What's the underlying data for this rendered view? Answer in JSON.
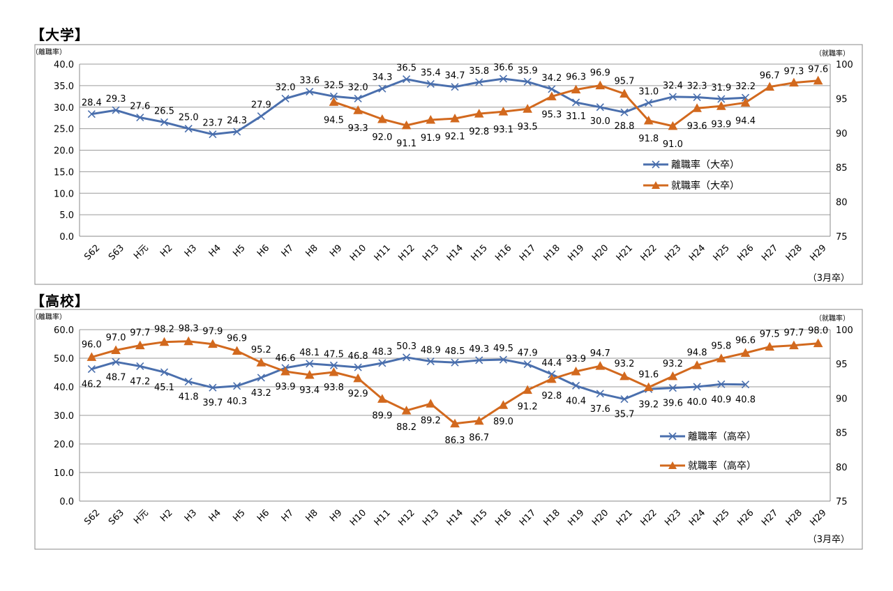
{
  "chart_data": [
    {
      "type": "line",
      "section_title": "【大学】",
      "left_axis_label": "（離職率）",
      "right_axis_label": "（就職率）",
      "x_note": "（3月卒）",
      "categories": [
        "S62",
        "S63",
        "H元",
        "H2",
        "H3",
        "H4",
        "H5",
        "H6",
        "H7",
        "H8",
        "H9",
        "H10",
        "H11",
        "H12",
        "H13",
        "H14",
        "H15",
        "H16",
        "H17",
        "H18",
        "H19",
        "H20",
        "H21",
        "H22",
        "H23",
        "H24",
        "H25",
        "H26",
        "H27",
        "H28",
        "H29"
      ],
      "ylim": [
        0,
        40
      ],
      "y_ticks": [
        "0.0",
        "5.0",
        "10.0",
        "15.0",
        "20.0",
        "25.0",
        "30.0",
        "35.0",
        "40.0"
      ],
      "y2lim": [
        75,
        100
      ],
      "y2_ticks": [
        "75",
        "80",
        "85",
        "90",
        "95",
        "100"
      ],
      "grid": true,
      "legend_position": "right-center",
      "series": [
        {
          "name": "離職率（大卒）",
          "axis": "left",
          "color": "#4a6fad",
          "marker": "x",
          "values": [
            28.4,
            29.3,
            27.6,
            26.5,
            25.0,
            23.7,
            24.3,
            27.9,
            32.0,
            33.6,
            32.5,
            32.0,
            34.3,
            36.5,
            35.4,
            34.7,
            35.8,
            36.6,
            35.9,
            34.2,
            31.1,
            30.0,
            28.8,
            31.0,
            32.4,
            32.3,
            31.9,
            32.2,
            null,
            null,
            null
          ],
          "labels": [
            "28.4",
            "29.3",
            "27.6",
            "26.5",
            "25.0",
            "23.7",
            "24.3",
            "27.9",
            "32.0",
            "33.6",
            "32.5",
            "32.0",
            "34.3",
            "36.5",
            "35.4",
            "34.7",
            "35.8",
            "36.6",
            "35.9",
            "34.2",
            "31.1",
            "30.0",
            "28.8",
            "31.0",
            "32.4",
            "32.3",
            "31.9",
            "32.2",
            null,
            null,
            null
          ]
        },
        {
          "name": "就職率（大卒）",
          "axis": "right",
          "color": "#d2691e",
          "marker": "triangle",
          "values": [
            null,
            null,
            null,
            null,
            null,
            null,
            null,
            null,
            null,
            null,
            94.5,
            93.3,
            92.0,
            91.1,
            91.9,
            92.1,
            92.8,
            93.1,
            93.5,
            95.3,
            96.3,
            96.9,
            95.7,
            91.8,
            91.0,
            93.6,
            93.9,
            94.4,
            96.7,
            97.3,
            97.6
          ],
          "labels": [
            null,
            null,
            null,
            null,
            null,
            null,
            null,
            null,
            null,
            null,
            "94.5",
            "93.3",
            "92.0",
            "91.1",
            "91.9",
            "92.1",
            "92.8",
            "93.1",
            "93.5",
            "95.3",
            "96.3",
            "96.9",
            "95.7",
            "91.8",
            "91.0",
            "93.6",
            "93.9",
            "94.4",
            "96.7",
            "97.3",
            "97.6"
          ]
        }
      ]
    },
    {
      "type": "line",
      "section_title": "【高校】",
      "left_axis_label": "（離職率）",
      "right_axis_label": "（就職率）",
      "x_note": "（3月卒）",
      "categories": [
        "S62",
        "S63",
        "H元",
        "H2",
        "H3",
        "H4",
        "H5",
        "H6",
        "H7",
        "H8",
        "H9",
        "H10",
        "H11",
        "H12",
        "H13",
        "H14",
        "H15",
        "H16",
        "H17",
        "H18",
        "H19",
        "H20",
        "H21",
        "H22",
        "H23",
        "H24",
        "H25",
        "H26",
        "H27",
        "H28",
        "H29"
      ],
      "ylim": [
        0,
        60
      ],
      "y_ticks": [
        "0.0",
        "10.0",
        "20.0",
        "30.0",
        "40.0",
        "50.0",
        "60.0"
      ],
      "y2lim": [
        75,
        100
      ],
      "y2_ticks": [
        "75",
        "80",
        "85",
        "90",
        "95",
        "100"
      ],
      "grid": true,
      "legend_position": "right-center",
      "series": [
        {
          "name": "離職率（高卒）",
          "axis": "left",
          "color": "#4a6fad",
          "marker": "x",
          "values": [
            46.2,
            48.7,
            47.2,
            45.1,
            41.8,
            39.7,
            40.3,
            43.2,
            46.6,
            48.1,
            47.5,
            46.8,
            48.3,
            50.3,
            48.9,
            48.5,
            49.3,
            49.5,
            47.9,
            44.4,
            40.4,
            37.6,
            35.7,
            39.2,
            39.6,
            40.0,
            40.9,
            40.8,
            null,
            null,
            null
          ],
          "labels": [
            "46.2",
            "48.7",
            "47.2",
            "45.1",
            "41.8",
            "39.7",
            "40.3",
            "43.2",
            "46.6",
            "48.1",
            "47.5",
            "46.8",
            "48.3",
            "50.3",
            "48.9",
            "48.5",
            "49.3",
            "49.5",
            "47.9",
            "44.4",
            "40.4",
            "37.6",
            "35.7",
            "39.2",
            "39.6",
            "40.0",
            "40.9",
            "40.8",
            null,
            null,
            null
          ]
        },
        {
          "name": "就職率（高卒）",
          "axis": "right",
          "color": "#d2691e",
          "marker": "triangle",
          "values": [
            96.0,
            97.0,
            97.7,
            98.2,
            98.3,
            97.9,
            96.9,
            95.2,
            93.9,
            93.4,
            93.8,
            92.9,
            89.9,
            88.2,
            89.2,
            86.3,
            86.7,
            89.0,
            91.2,
            92.8,
            93.9,
            94.7,
            93.2,
            91.6,
            93.2,
            94.8,
            95.8,
            96.6,
            97.5,
            97.7,
            98.0
          ],
          "labels": [
            "96.0",
            "97.0",
            "97.7",
            "98.2",
            "98.3",
            "97.9",
            "96.9",
            "95.2",
            "93.9",
            "93.4",
            "93.8",
            "92.9",
            "89.9",
            "88.2",
            "89.2",
            "86.3",
            "86.7",
            "89.0",
            "91.2",
            "92.8",
            "93.9",
            "94.7",
            "93.2",
            "91.6",
            "93.2",
            "94.8",
            "95.8",
            "96.6",
            "97.5",
            "97.7",
            "98.0"
          ]
        }
      ]
    }
  ]
}
